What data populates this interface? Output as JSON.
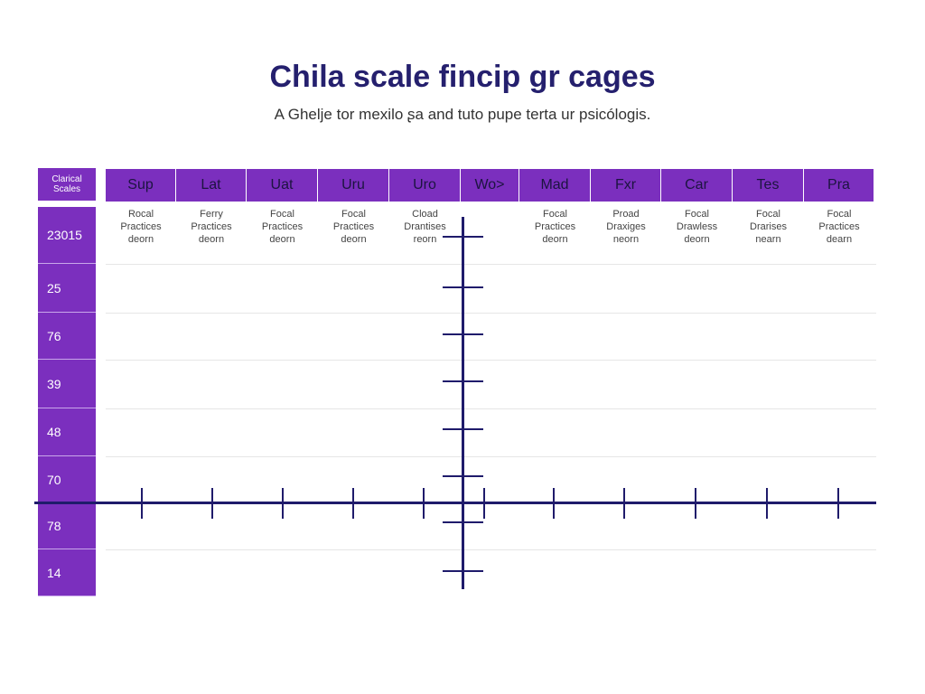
{
  "header": {
    "title": "Chila scale fincip gr cages",
    "subtitle": "A Ghelje tor mexilo ʂa and tuto pupe terta ur psicólogis."
  },
  "table": {
    "corner": [
      "Clarical",
      "Scales"
    ],
    "columns": [
      "Sup",
      "Lat",
      "Uat",
      "Uru",
      "Uro",
      "Wo>",
      "Mad",
      "Fxr",
      "Car",
      "Tes",
      "Pra"
    ],
    "row_labels": [
      "23015",
      "25",
      "76",
      "39",
      "48",
      "70",
      "78",
      "14"
    ],
    "first_row_cells": [
      [
        "Rocal",
        "Practices",
        "deorn"
      ],
      [
        "Ferry",
        "Practices",
        "deorn"
      ],
      [
        "Focal",
        "Practices",
        "deorn"
      ],
      [
        "Focal",
        "Practices",
        "deorn"
      ],
      [
        "Cload",
        "Drantises",
        "reorn"
      ],
      null,
      [
        "Focal",
        "Practices",
        "deorn"
      ],
      [
        "Proad",
        "Draxiges",
        "neorn"
      ],
      [
        "Focal",
        "Drawless",
        "deorn"
      ],
      [
        "Focal",
        "Drarises",
        "nearn"
      ],
      [
        "Focal",
        "Practices",
        "dearn"
      ]
    ]
  }
}
